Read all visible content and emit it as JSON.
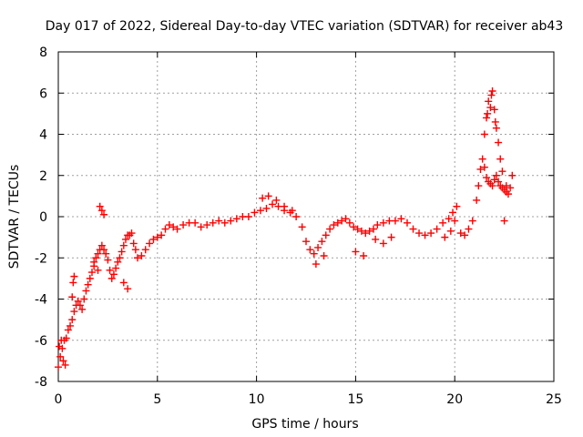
{
  "chart_data": {
    "type": "scatter",
    "title": "Day 017 of 2022, Sidereal Day-to-day VTEC variation (SDTVAR) for receiver ab43",
    "xlabel": "GPS time / hours",
    "ylabel": "SDTVAR / TECUs",
    "xlim": [
      0,
      25
    ],
    "ylim": [
      -8,
      8
    ],
    "x_ticks": [
      0,
      5,
      10,
      15,
      20,
      25
    ],
    "y_ticks": [
      -8,
      -6,
      -4,
      -2,
      0,
      2,
      4,
      6,
      8
    ],
    "x_tick_labels": [
      "0",
      "5",
      "10",
      "15",
      "20",
      "25"
    ],
    "y_tick_labels": [
      "-8",
      "-6",
      "-4",
      "-2",
      "0",
      "2",
      "4",
      "6",
      "8"
    ],
    "grid": true,
    "marker": "plus",
    "color": "#ff0000",
    "series": [
      {
        "name": "SDTVAR",
        "x": [
          0.0,
          0.1,
          0.2,
          0.3,
          0.4,
          0.5,
          0.6,
          0.7,
          0.8,
          0.9,
          1.0,
          1.1,
          1.2,
          1.3,
          1.4,
          1.5,
          1.6,
          1.7,
          1.8,
          1.9,
          2.0,
          2.1,
          2.2,
          2.3,
          2.4,
          2.5,
          2.6,
          2.7,
          2.8,
          2.9,
          3.0,
          3.1,
          3.2,
          3.3,
          3.4,
          3.5,
          3.6,
          3.7,
          3.8,
          3.9,
          4.0,
          4.2,
          4.4,
          4.6,
          4.8,
          5.0,
          5.2,
          5.4,
          5.6,
          5.8,
          6.0,
          6.3,
          6.6,
          6.9,
          7.2,
          7.5,
          7.8,
          8.1,
          8.4,
          8.7,
          9.0,
          9.3,
          9.6,
          9.9,
          10.2,
          10.5,
          10.8,
          11.1,
          11.4,
          11.7,
          12.0,
          12.3,
          12.5,
          12.7,
          12.9,
          13.1,
          13.3,
          13.5,
          13.7,
          13.9,
          14.1,
          14.3,
          14.5,
          14.7,
          14.9,
          15.1,
          15.3,
          15.5,
          15.7,
          15.9,
          16.1,
          16.4,
          16.7,
          17.0,
          17.3,
          17.6,
          17.9,
          18.2,
          18.5,
          18.8,
          19.1,
          19.4,
          19.7,
          19.9,
          20.1,
          20.3,
          20.5,
          20.7,
          20.9,
          21.1,
          21.2,
          21.3,
          21.4,
          21.5,
          21.6,
          21.7,
          21.8,
          21.9,
          22.0,
          22.1,
          22.2,
          22.3,
          22.4,
          22.5,
          22.6,
          22.7,
          22.8,
          22.9,
          0.05,
          0.15,
          0.25,
          0.35,
          0.7,
          0.75,
          0.8,
          2.1,
          2.2,
          2.3,
          1.8,
          2.0,
          3.3,
          3.5,
          10.3,
          10.6,
          11.0,
          11.4,
          11.8,
          13.0,
          13.4,
          15.0,
          15.4,
          16.0,
          16.4,
          16.8,
          19.5,
          19.8,
          20.0,
          21.5,
          21.6,
          21.7,
          21.8,
          21.9,
          22.0,
          22.1,
          22.2,
          22.3,
          22.4,
          22.5,
          22.6,
          21.65,
          21.85,
          22.05
        ],
        "y": [
          -7.3,
          -6.8,
          -6.4,
          -6.0,
          -5.9,
          -5.5,
          -5.3,
          -5.0,
          -4.6,
          -4.3,
          -4.1,
          -4.3,
          -4.5,
          -4.0,
          -3.6,
          -3.3,
          -3.0,
          -2.7,
          -2.4,
          -2.0,
          -1.8,
          -1.6,
          -1.4,
          -1.6,
          -1.8,
          -2.1,
          -2.6,
          -3.0,
          -2.8,
          -2.5,
          -2.2,
          -2.0,
          -1.7,
          -1.4,
          -1.1,
          -0.9,
          -0.9,
          -0.8,
          -1.3,
          -1.6,
          -2.0,
          -1.9,
          -1.6,
          -1.3,
          -1.1,
          -1.0,
          -0.9,
          -0.6,
          -0.4,
          -0.5,
          -0.6,
          -0.4,
          -0.3,
          -0.3,
          -0.5,
          -0.4,
          -0.3,
          -0.2,
          -0.3,
          -0.2,
          -0.1,
          0.0,
          0.0,
          0.2,
          0.3,
          0.4,
          0.6,
          0.5,
          0.3,
          0.2,
          0.0,
          -0.5,
          -1.2,
          -1.6,
          -1.8,
          -1.5,
          -1.2,
          -0.9,
          -0.6,
          -0.4,
          -0.3,
          -0.2,
          -0.1,
          -0.3,
          -0.5,
          -0.6,
          -0.7,
          -0.8,
          -0.7,
          -0.6,
          -0.4,
          -0.3,
          -0.2,
          -0.2,
          -0.1,
          -0.3,
          -0.6,
          -0.8,
          -0.9,
          -0.8,
          -0.6,
          -0.3,
          -0.1,
          0.2,
          0.5,
          -0.8,
          -0.9,
          -0.6,
          -0.2,
          0.8,
          1.5,
          2.3,
          2.8,
          2.4,
          1.9,
          1.7,
          1.6,
          1.5,
          1.8,
          2.0,
          1.7,
          1.5,
          1.4,
          1.3,
          1.2,
          1.1,
          1.4,
          2.0,
          -6.3,
          -6.0,
          -7.0,
          -7.2,
          -3.9,
          -3.2,
          -2.9,
          0.5,
          0.3,
          0.1,
          -2.2,
          -2.6,
          -3.2,
          -3.5,
          0.9,
          1.0,
          0.8,
          0.5,
          0.3,
          -2.3,
          -1.9,
          -1.7,
          -1.9,
          -1.1,
          -1.3,
          -1.0,
          -1.0,
          -0.7,
          -0.2,
          4.0,
          4.8,
          5.6,
          5.3,
          6.1,
          5.2,
          4.3,
          3.6,
          2.8,
          2.2,
          -0.2,
          1.5,
          5.0,
          5.9,
          4.6
        ]
      }
    ]
  }
}
